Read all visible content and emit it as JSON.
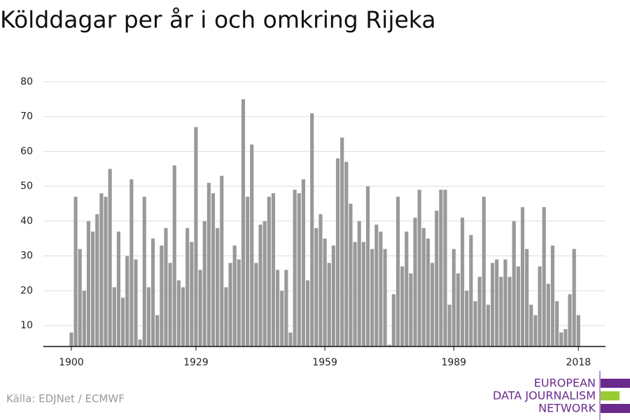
{
  "chart_data": {
    "type": "bar",
    "title": "Kölddagar per år i och omkring Rijeka",
    "source": "Källa: EDJNet / ECMWF",
    "logo": [
      "EUROPEAN",
      "DATA JOURNALISM",
      "NETWORK"
    ],
    "color": "#999999",
    "grid": true,
    "x": [
      1900,
      1901,
      1902,
      1903,
      1904,
      1905,
      1906,
      1907,
      1908,
      1909,
      1910,
      1911,
      1912,
      1913,
      1914,
      1915,
      1916,
      1917,
      1918,
      1919,
      1920,
      1921,
      1922,
      1923,
      1924,
      1925,
      1926,
      1927,
      1928,
      1929,
      1930,
      1931,
      1932,
      1933,
      1934,
      1935,
      1936,
      1937,
      1938,
      1939,
      1940,
      1941,
      1942,
      1943,
      1944,
      1945,
      1946,
      1947,
      1948,
      1949,
      1950,
      1951,
      1952,
      1953,
      1954,
      1955,
      1956,
      1957,
      1958,
      1959,
      1960,
      1961,
      1962,
      1963,
      1964,
      1965,
      1966,
      1967,
      1968,
      1969,
      1970,
      1971,
      1972,
      1973,
      1974,
      1975,
      1976,
      1977,
      1978,
      1979,
      1980,
      1981,
      1982,
      1983,
      1984,
      1985,
      1986,
      1987,
      1988,
      1989,
      1990,
      1991,
      1992,
      1993,
      1994,
      1995,
      1996,
      1997,
      1998,
      1999,
      2000,
      2001,
      2002,
      2003,
      2004,
      2005,
      2006,
      2007,
      2008,
      2009,
      2010,
      2011,
      2012,
      2013,
      2014,
      2015,
      2016,
      2017,
      2018
    ],
    "values": [
      8,
      47,
      32,
      20,
      40,
      37,
      42,
      48,
      47,
      55,
      21,
      37,
      18,
      30,
      52,
      29,
      6,
      47,
      21,
      35,
      13,
      33,
      38,
      28,
      56,
      23,
      21,
      38,
      34,
      67,
      26,
      40,
      51,
      48,
      38,
      53,
      21,
      28,
      33,
      29,
      75,
      47,
      62,
      28,
      39,
      40,
      47,
      48,
      26,
      20,
      26,
      8,
      49,
      48,
      52,
      23,
      71,
      38,
      42,
      35,
      28,
      33,
      58,
      64,
      57,
      45,
      34,
      40,
      34,
      50,
      32,
      39,
      37,
      32,
      4.5,
      19,
      47,
      27,
      37,
      25,
      41,
      49,
      38,
      35,
      28,
      43,
      49,
      49,
      16,
      32,
      25,
      41,
      20,
      36,
      17,
      24,
      47,
      16,
      28,
      29,
      24,
      29,
      24,
      40,
      27,
      44,
      32,
      16,
      13,
      27,
      44,
      22,
      33,
      17,
      8,
      9,
      19,
      32,
      13
    ],
    "xlim": [
      1893.5,
      2024.3
    ],
    "xticks": [
      1900,
      1929,
      1959,
      1989,
      2018
    ],
    "ylim": [
      4,
      84
    ],
    "yticks": [
      10,
      20,
      30,
      40,
      50,
      60,
      70,
      80
    ]
  }
}
